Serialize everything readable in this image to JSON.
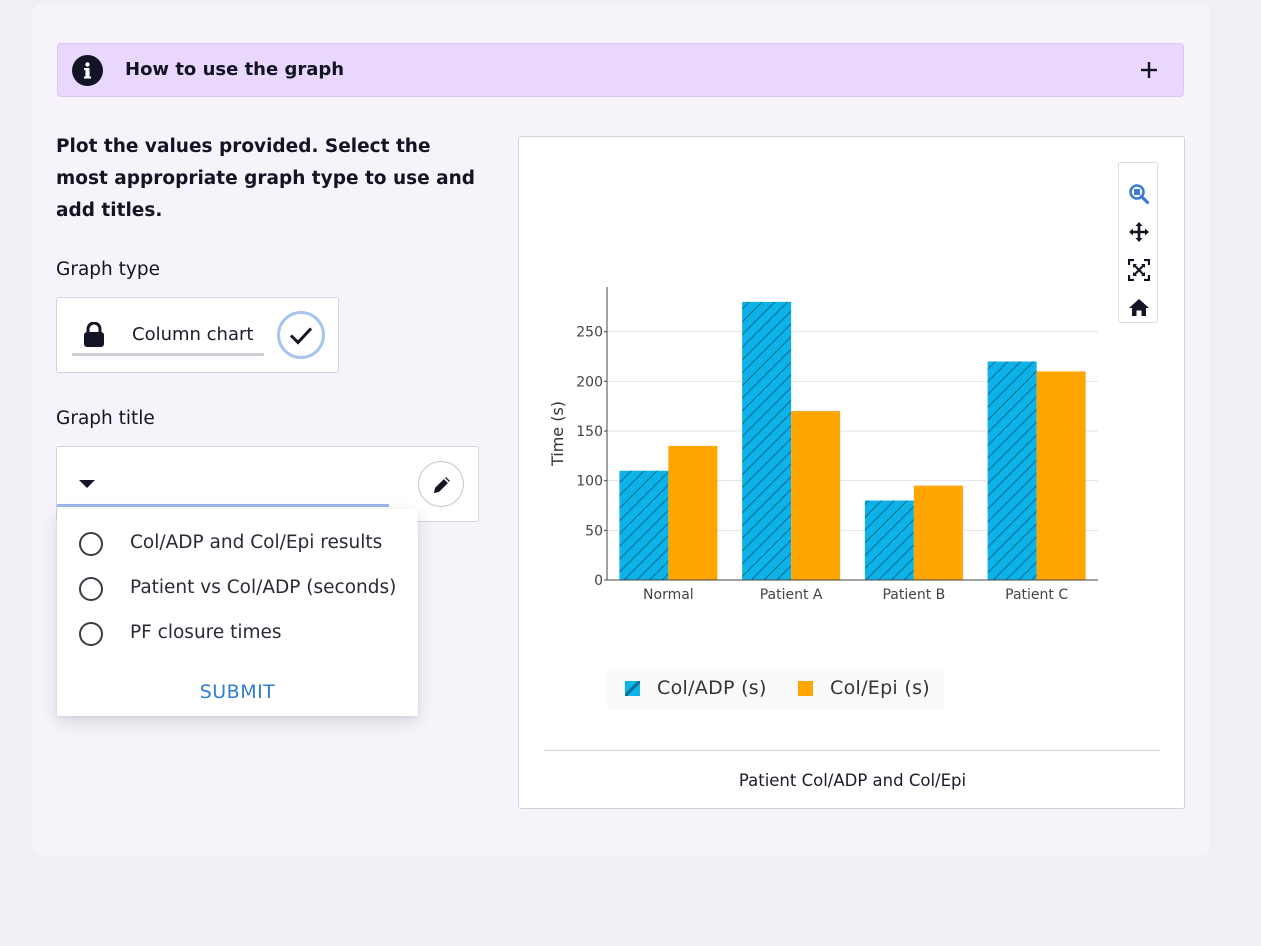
{
  "accordion": {
    "title": "How to use the graph"
  },
  "instructions": "Plot the values provided. Select the most appropriate graph type to use and add titles.",
  "graph_type": {
    "label": "Graph type",
    "value": "Column chart"
  },
  "graph_title": {
    "label": "Graph title",
    "options": [
      "Col/ADP and Col/Epi results",
      "Patient vs Col/ADP (seconds)",
      "PF closure times"
    ],
    "submit_label": "SUBMIT"
  },
  "modebar": {
    "icons": [
      "zoom-icon",
      "pan-icon",
      "autoscale-icon",
      "home-icon"
    ]
  },
  "caption": "Patient Col/ADP and Col/Epi",
  "colors": {
    "accent": "#2f7fd0",
    "series1": "#0db3e8",
    "series2": "#ffa500",
    "accordion_bg": "#ead7fd"
  },
  "chart_data": {
    "type": "bar",
    "categories": [
      "Normal",
      "Patient A",
      "Patient B",
      "Patient C"
    ],
    "series": [
      {
        "name": "Col/ADP (s)",
        "values": [
          110,
          280,
          80,
          220
        ]
      },
      {
        "name": "Col/Epi (s)",
        "values": [
          135,
          170,
          95,
          210
        ]
      }
    ],
    "ylabel": "Time (s)",
    "xlabel": "",
    "ylim": [
      0,
      295
    ],
    "yticks": [
      0,
      50,
      100,
      150,
      200,
      250
    ],
    "grid": true,
    "legend": "bottom"
  }
}
